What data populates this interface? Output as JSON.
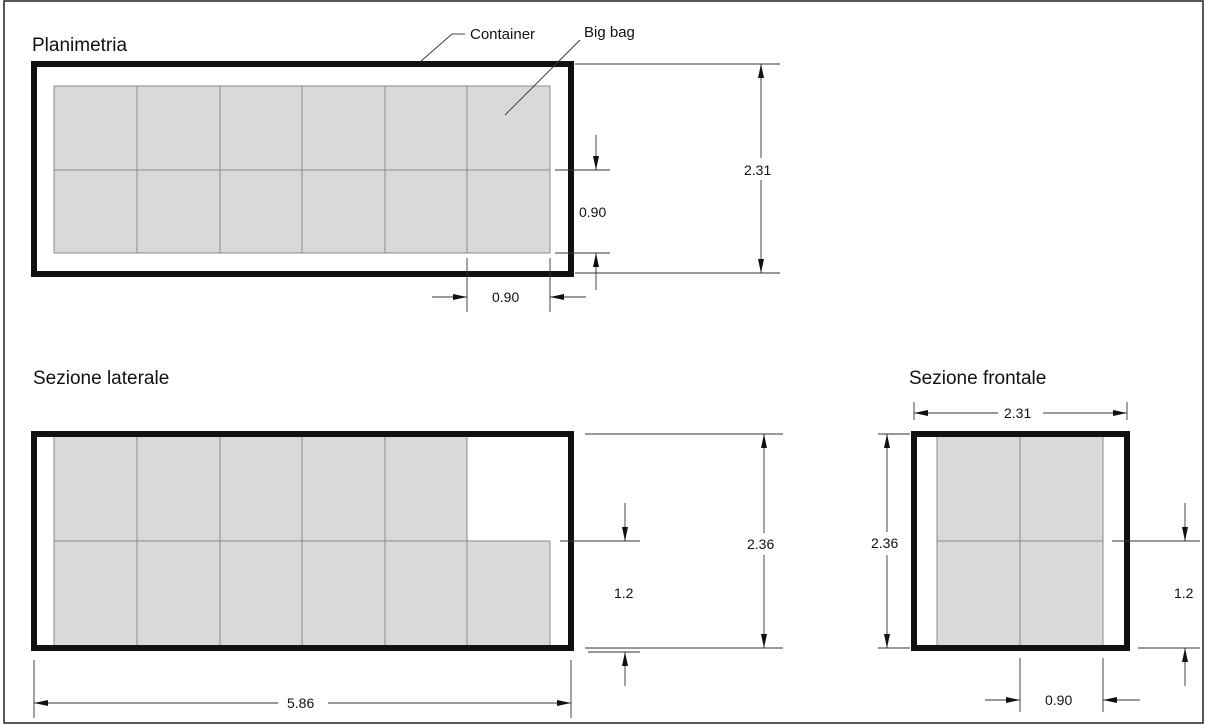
{
  "titles": {
    "plan": "Planimetria",
    "side": "Sezione laterale",
    "front": "Sezione frontale"
  },
  "callouts": {
    "container": "Container",
    "big_bag": "Big bag"
  },
  "dimensions": {
    "plan_bag_width_v": "0.90",
    "plan_height": "2.31",
    "plan_bag_width_h": "0.90",
    "side_height": "2.36",
    "side_bag_height": "1.2",
    "side_length": "5.86",
    "front_width": "2.31",
    "front_height": "2.36",
    "front_bag_height": "1.2",
    "front_bag_width": "0.90"
  },
  "colors": {
    "bag_fill": "#d9d9d9",
    "container_stroke": "#111111"
  }
}
